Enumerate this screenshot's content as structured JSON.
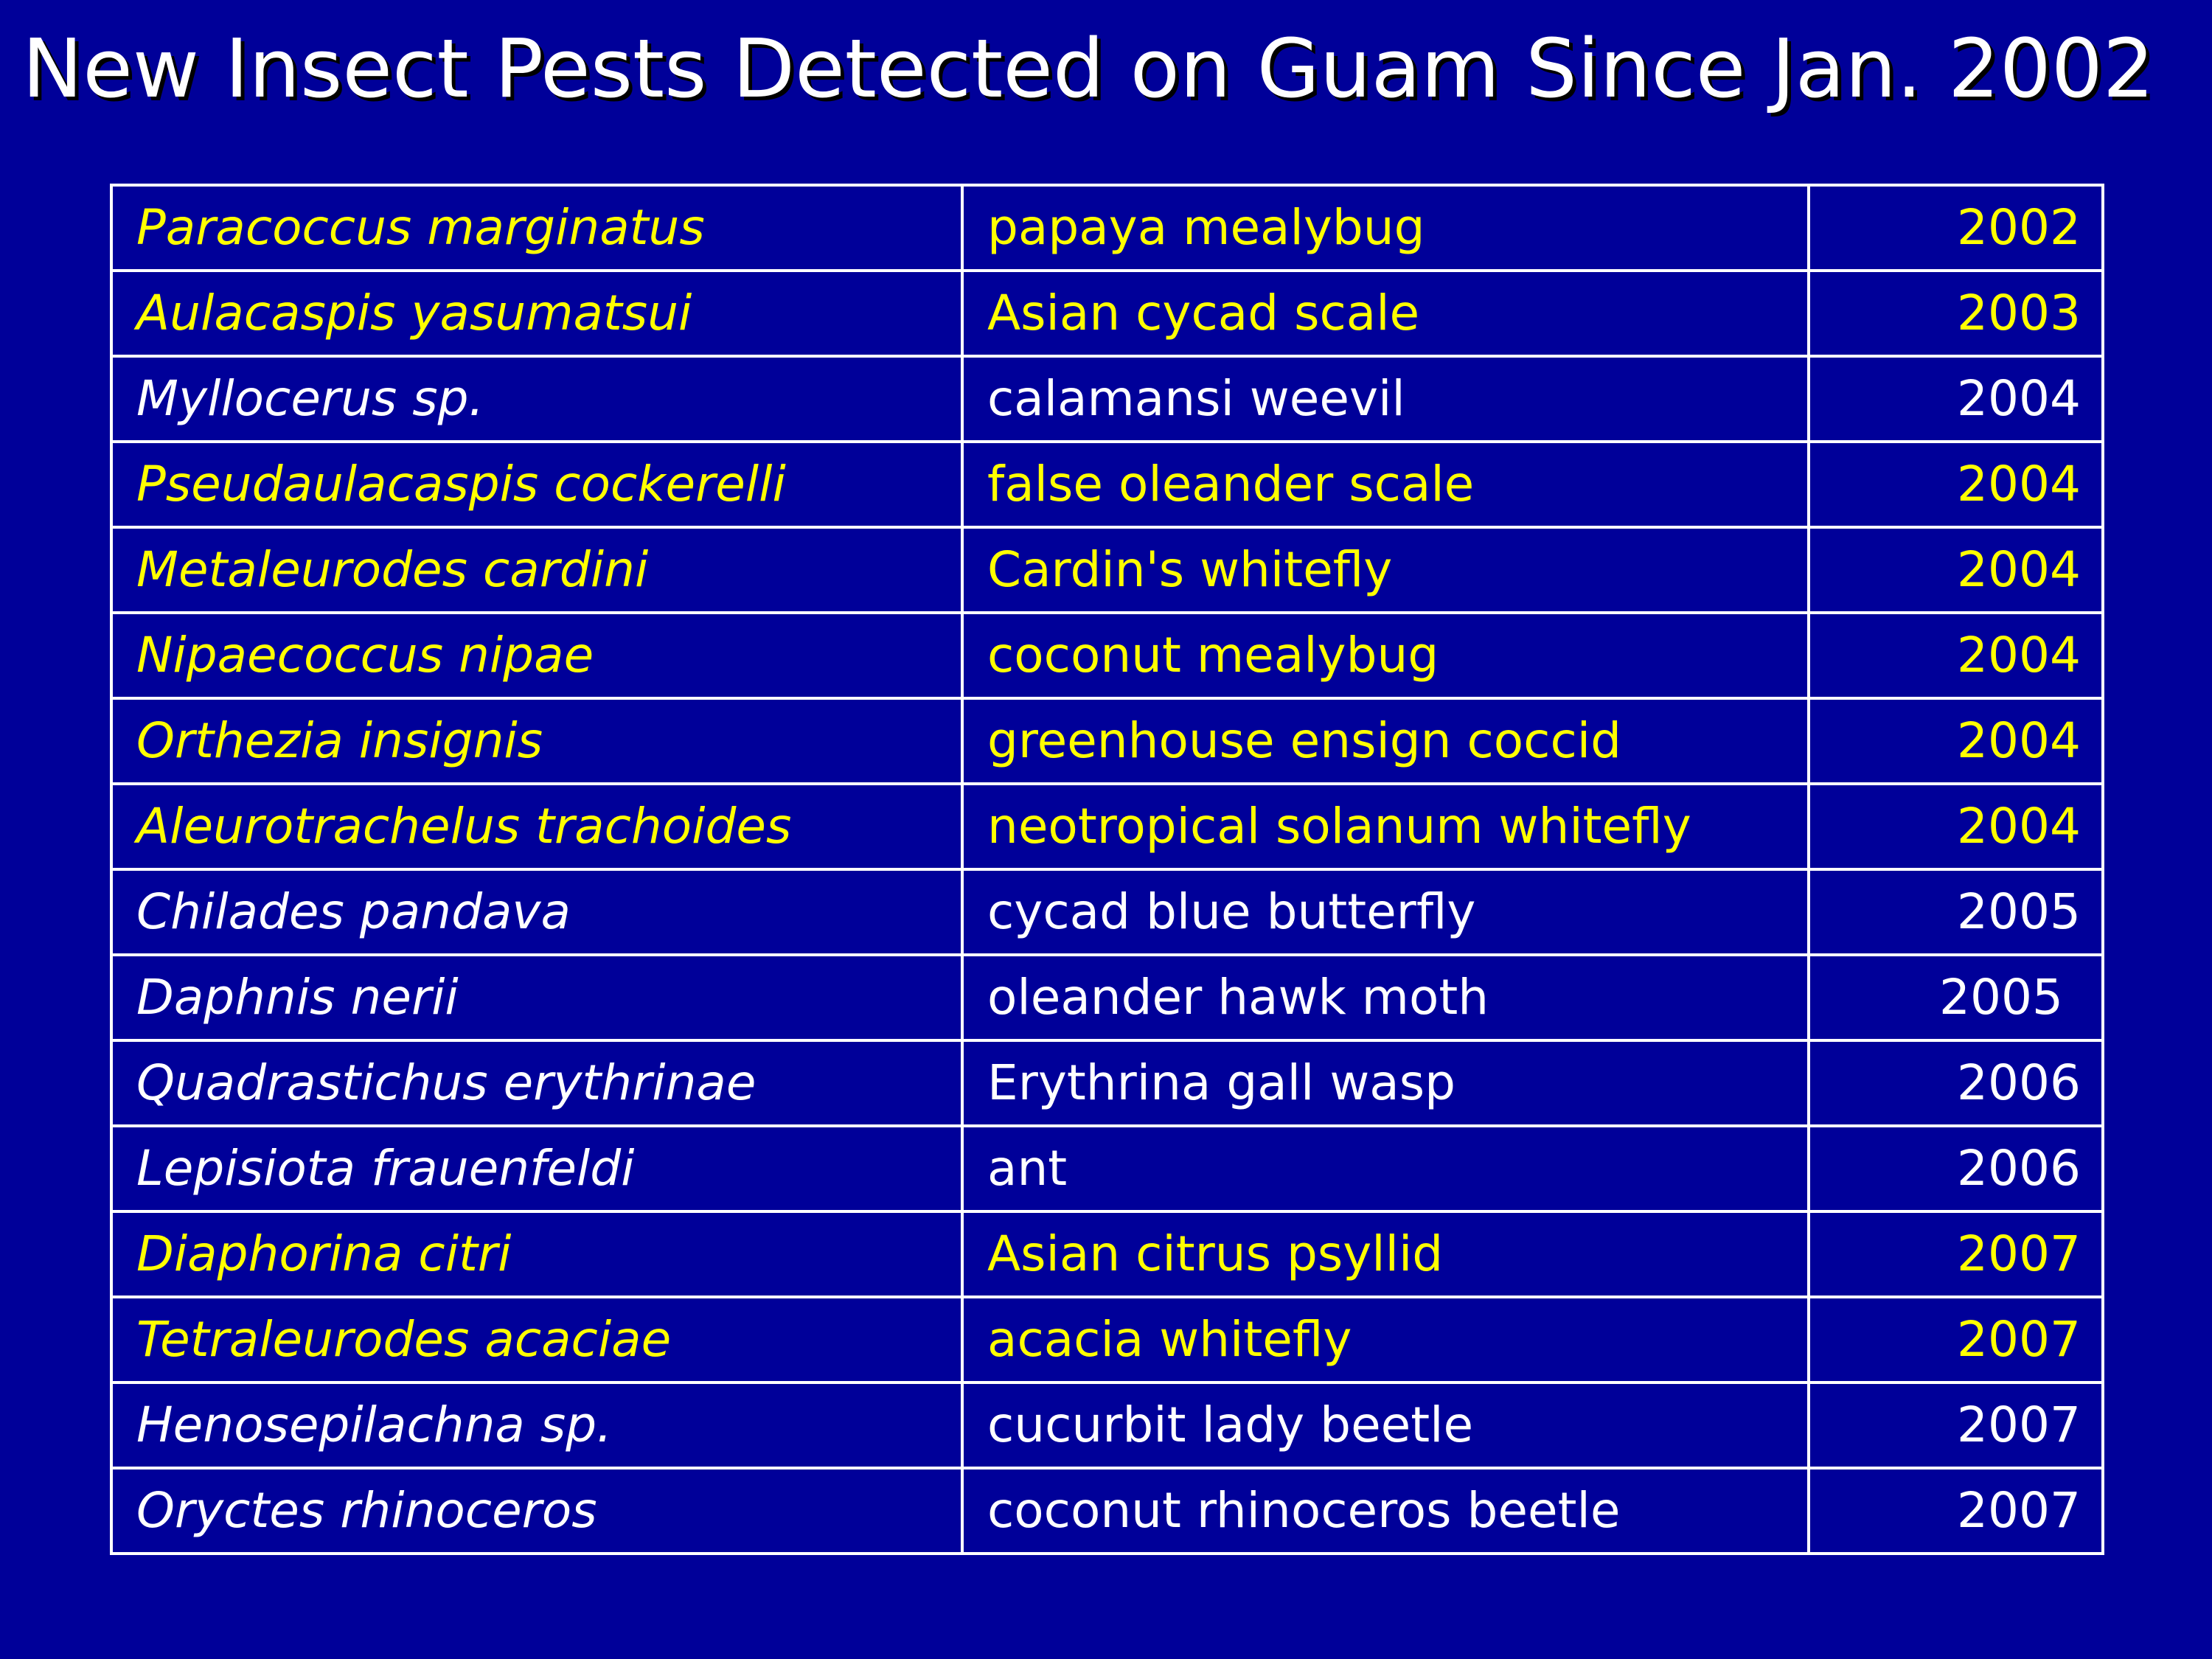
{
  "title": "New Insect Pests Detected on Guam Since Jan. 2002",
  "colors": {
    "background": "#000099",
    "text": "#ffffff",
    "highlight": "#ffff00",
    "border": "#ffffff"
  },
  "rows": [
    {
      "scientific": "Paracoccus marginatus",
      "common": "papaya mealybug",
      "year": "2002",
      "highlight": true
    },
    {
      "scientific": "Aulacaspis yasumatsui",
      "common": "Asian cycad scale",
      "year": "2003",
      "highlight": true
    },
    {
      "scientific": "Myllocerus sp.",
      "common": "calamansi weevil",
      "year": "2004",
      "highlight": false
    },
    {
      "scientific": "Pseudaulacaspis cockerelli",
      "common": "false oleander scale",
      "year": "2004",
      "highlight": true
    },
    {
      "scientific": "Metaleurodes cardini",
      "common": "Cardin's whitefly",
      "year": "2004",
      "highlight": true
    },
    {
      "scientific": "Nipaecoccus nipae",
      "common": "coconut mealybug",
      "year": "2004",
      "highlight": true
    },
    {
      "scientific": "Orthezia insignis",
      "common": "greenhouse ensign coccid",
      "year": "2004",
      "highlight": true
    },
    {
      "scientific": "Aleurotrachelus trachoides",
      "common": "neotropical solanum whitefly",
      "year": "2004",
      "highlight": true
    },
    {
      "scientific": "Chilades pandava",
      "common": "cycad blue butterfly",
      "year": "2005",
      "highlight": false
    },
    {
      "scientific": "Daphnis nerii",
      "common": "oleander hawk moth",
      "year": "2005",
      "highlight": false
    },
    {
      "scientific": "Quadrastichus erythrinae",
      "common": "Erythrina gall wasp",
      "year": "2006",
      "highlight": false
    },
    {
      "scientific": "Lepisiota frauenfeldi",
      "common": "ant",
      "year": "2006",
      "highlight": false
    },
    {
      "scientific": "Diaphorina citri",
      "common": "Asian citrus psyllid",
      "year": "2007",
      "highlight": true
    },
    {
      "scientific": "Tetraleurodes acaciae",
      "common": "acacia whitefly",
      "year": "2007",
      "highlight": true
    },
    {
      "scientific": "Henosepilachna sp.",
      "common": "cucurbit lady beetle",
      "year": "2007",
      "highlight": false
    },
    {
      "scientific": "Oryctes rhinoceros",
      "common": "coconut rhinoceros beetle",
      "year": "2007",
      "highlight": false
    }
  ]
}
